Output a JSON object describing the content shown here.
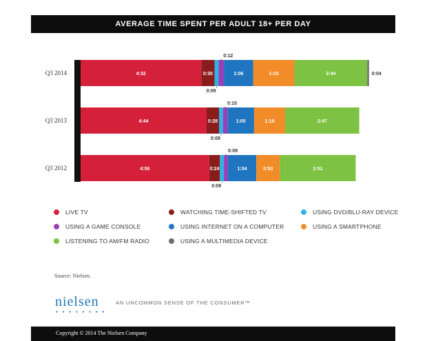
{
  "colors": {
    "live_tv": "#d5203a",
    "time_shifted": "#8b1c1c",
    "dvd": "#2bb5e6",
    "game_console": "#9b3fb6",
    "internet": "#1f75c0",
    "smartphone": "#f28c28",
    "radio": "#7dc242",
    "multimedia": "#6d6e70"
  },
  "chart_data": {
    "type": "bar",
    "orientation": "horizontal",
    "stacked": true,
    "title": "AVERAGE TIME SPENT PER ADULT 18+ PER DAY",
    "categories": [
      "Q3 2014",
      "Q3 2013",
      "Q3 2012"
    ],
    "series": [
      {
        "name": "LIVE TV",
        "color_key": "live_tv",
        "values": [
          272,
          284,
          290
        ],
        "labels": [
          "4:32",
          "4:44",
          "4:50"
        ]
      },
      {
        "name": "WATCHING TIME-SHIFTED TV",
        "color_key": "time_shifted",
        "values": [
          30,
          28,
          24
        ],
        "labels": [
          "0:30",
          "0:28",
          "0:24"
        ]
      },
      {
        "name": "USING DVD/BLU-RAY DEVICE",
        "color_key": "dvd",
        "values": [
          9,
          9,
          9
        ],
        "labels": [
          "0:09",
          "0:09",
          "0:09"
        ]
      },
      {
        "name": "USING A GAME CONSOLE",
        "color_key": "game_console",
        "values": [
          12,
          10,
          9
        ],
        "labels": [
          "0:12",
          "0:10",
          "0:09"
        ]
      },
      {
        "name": "USING INTERNET ON A COMPUTER",
        "color_key": "internet",
        "values": [
          66,
          60,
          64
        ],
        "labels": [
          "1:06",
          "1:00",
          "1:04"
        ]
      },
      {
        "name": "USING A SMARTPHONE",
        "color_key": "smartphone",
        "values": [
          93,
          70,
          53
        ],
        "labels": [
          "1:33",
          "1:10",
          "0:53"
        ]
      },
      {
        "name": "LISTENING TO AM/FM RADIO",
        "color_key": "radio",
        "values": [
          164,
          167,
          171
        ],
        "labels": [
          "2:44",
          "2:47",
          "2:51"
        ]
      },
      {
        "name": "USING A MULTIMEDIA DEVICE",
        "color_key": "multimedia",
        "values": [
          4,
          0,
          0
        ],
        "labels": [
          "0:04",
          "",
          ""
        ]
      }
    ],
    "legend_placement": "bottom",
    "grid": false
  },
  "source": "Source: Nielsen.",
  "brand": {
    "logo": "nielsen",
    "tagline": "AN UNCOMMON SENSE OF THE CONSUMER™",
    "copyright": "Copyright © 2014 The Nielsen Company"
  }
}
